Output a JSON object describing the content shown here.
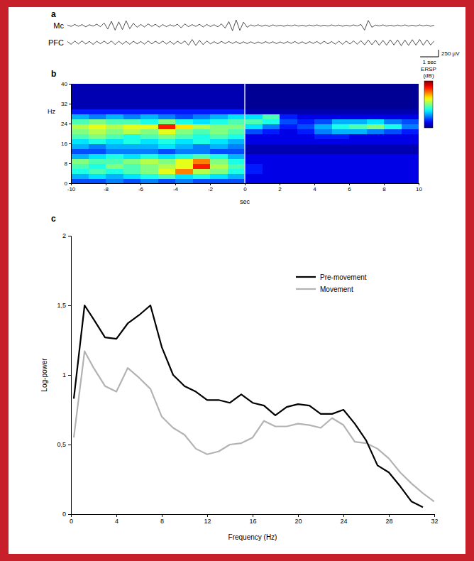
{
  "chart_data": [
    {
      "type": "line",
      "panel_label": "a",
      "xlim": [
        -10,
        10
      ],
      "ylim": [
        -300,
        300
      ],
      "tick_labels": false,
      "x": [
        -10,
        -9.8,
        -9.6,
        -9.4,
        -9.2,
        -9,
        -8.8,
        -8.6,
        -8.4,
        -8.2,
        -8,
        -7.8,
        -7.6,
        -7.4,
        -7.2,
        -7,
        -6.8,
        -6.6,
        -6.4,
        -6.2,
        -6,
        -5.8,
        -5.6,
        -5.4,
        -5.2,
        -5,
        -4.8,
        -4.6,
        -4.4,
        -4.2,
        -4,
        -3.8,
        -3.6,
        -3.4,
        -3.2,
        -3,
        -2.8,
        -2.6,
        -2.4,
        -2.2,
        -2,
        -1.8,
        -1.6,
        -1.4,
        -1.2,
        -1,
        -0.8,
        -0.6,
        -0.4,
        -0.2,
        0,
        0.2,
        0.4,
        0.6,
        0.8,
        1,
        1.2,
        1.4,
        1.6,
        1.8,
        2,
        2.2,
        2.4,
        2.6,
        2.8,
        3,
        3.2,
        3.4,
        3.6,
        3.8,
        4,
        4.2,
        4.4,
        4.6,
        4.8,
        5,
        5.2,
        5.4,
        5.6,
        5.8,
        6,
        6.2,
        6.4,
        6.6,
        6.8,
        7,
        7.2,
        7.4,
        7.6,
        7.8,
        8,
        8.2,
        8.4,
        8.6,
        8.8,
        9,
        9.2,
        9.4,
        9.6,
        9.8,
        10
      ],
      "series": [
        {
          "name": "Mc",
          "color": "#222222",
          "values": [
            20,
            -30,
            40,
            -25,
            35,
            -45,
            30,
            -20,
            50,
            -40,
            90,
            -120,
            150,
            -160,
            130,
            -140,
            170,
            -110,
            80,
            -60,
            40,
            -50,
            60,
            -30,
            45,
            -55,
            35,
            -40,
            30,
            -25,
            50,
            -80,
            60,
            -40,
            35,
            -30,
            45,
            -50,
            40,
            -35,
            30,
            -45,
            60,
            -90,
            140,
            -180,
            200,
            -170,
            120,
            -60,
            25,
            -20,
            30,
            -25,
            20,
            -30,
            25,
            -20,
            15,
            -25,
            20,
            -15,
            25,
            -20,
            15,
            -25,
            20,
            -15,
            25,
            -20,
            15,
            -20,
            25,
            -15,
            20,
            -25,
            15,
            -20,
            25,
            -15,
            40,
            -160,
            180,
            -60,
            20,
            -15,
            25,
            -20,
            15,
            -20,
            20,
            -15,
            25,
            -20,
            15,
            -20,
            25,
            -15,
            20,
            -25,
            15
          ]
        },
        {
          "name": "PFC",
          "color": "#222222",
          "values": [
            40,
            -60,
            55,
            -45,
            60,
            -50,
            45,
            -65,
            50,
            -40,
            55,
            -45,
            60,
            -70,
            50,
            -55,
            45,
            -60,
            50,
            -45,
            40,
            -55,
            60,
            -45,
            50,
            -40,
            55,
            -50,
            45,
            -60,
            50,
            -40,
            60,
            -90,
            110,
            -100,
            80,
            -70,
            60,
            -45,
            35,
            -40,
            45,
            -35,
            40,
            -30,
            35,
            -40,
            30,
            -35,
            30,
            -35,
            25,
            -30,
            35,
            -25,
            30,
            -35,
            25,
            -30,
            35,
            -30,
            40,
            -35,
            30,
            -40,
            35,
            -30,
            40,
            -45,
            50,
            -45,
            40,
            -55,
            50,
            -60,
            55,
            -50,
            60,
            -55,
            70,
            -80,
            90,
            -75,
            85,
            -95,
            80,
            -90,
            100,
            -85,
            95,
            -110,
            90,
            -100,
            105,
            -90,
            110,
            -95,
            100,
            -85,
            60
          ]
        }
      ],
      "scale_bar": {
        "y": 250,
        "y_label": "250 µV",
        "x": 1,
        "x_label": "1 sec"
      }
    },
    {
      "type": "heatmap",
      "panel_label": "b",
      "x_label": "sec",
      "y_label": "Hz",
      "xlim": [
        -10,
        10
      ],
      "ylim": [
        0,
        40
      ],
      "xticks": [
        -10,
        -8,
        -6,
        -4,
        -2,
        0,
        2,
        4,
        6,
        8,
        10
      ],
      "yticks": [
        0,
        8,
        16,
        24,
        32,
        40
      ],
      "x_bins": [
        -10,
        -9,
        -8,
        -7,
        -6,
        -5,
        -4,
        -3,
        -2,
        -1,
        0,
        1,
        2,
        3,
        4,
        5,
        6,
        7,
        8,
        9,
        10
      ],
      "y_bins": [
        0,
        2,
        4,
        6,
        8,
        10,
        12,
        14,
        16,
        18,
        20,
        22,
        24,
        26,
        28,
        30,
        32,
        34,
        36,
        38,
        40
      ],
      "cells": [
        [
          -2,
          -2,
          -1.5,
          -2,
          -1.5,
          -2,
          -1.5,
          -2,
          -2,
          -2,
          -3,
          -3,
          -3,
          -3,
          -3,
          -3,
          -3,
          -3,
          -3,
          -3
        ],
        [
          -1,
          -0.5,
          -1,
          -0.5,
          0,
          0.5,
          -0.5,
          0,
          -0.5,
          -1,
          -3,
          -3,
          -3,
          -3,
          -3,
          -3,
          -3,
          -3,
          -3,
          -3
        ],
        [
          0,
          0.5,
          0,
          0.5,
          1,
          2,
          3.5,
          1.5,
          1,
          0,
          -2.5,
          -3,
          -3,
          -3,
          -3,
          -3,
          -3,
          -3,
          -3,
          -3
        ],
        [
          0.5,
          0,
          1,
          0.5,
          1,
          1.5,
          2,
          4.5,
          1.5,
          0.5,
          -2.5,
          -3,
          -3,
          -3,
          -3,
          -3,
          -3,
          -3,
          -3,
          -3
        ],
        [
          1,
          0.5,
          0.5,
          1,
          1.5,
          1,
          2,
          3.5,
          1,
          0,
          -3,
          -3,
          -3,
          -3,
          -3,
          -3,
          -3,
          -3,
          -3,
          -3
        ],
        [
          -1,
          -0.5,
          0,
          -0.5,
          0,
          -0.5,
          0,
          0.5,
          0,
          -1,
          -3,
          -3,
          -3,
          -3,
          -3,
          -3,
          -3,
          -3,
          -3,
          -3
        ],
        [
          -2,
          -2,
          -1.5,
          -1.5,
          -1.5,
          -2,
          -1.5,
          -1.5,
          -2,
          -2,
          -3.5,
          -3.5,
          -3.5,
          -3.5,
          -3.5,
          -3.5,
          -3.5,
          -3.5,
          -3.5,
          -3.5
        ],
        [
          -1,
          -1.5,
          -1,
          -1,
          -1,
          -0.5,
          -1,
          -1.5,
          -1,
          -1.5,
          -3.5,
          -3.5,
          -3.5,
          -3.5,
          -3.5,
          -3.5,
          -3.5,
          -3.5,
          -3.5,
          -3.5
        ],
        [
          -0.5,
          0,
          -0.5,
          0,
          -0.5,
          0,
          -0.5,
          0,
          -0.5,
          -1,
          -3,
          -3,
          -3,
          -3,
          -3,
          -3,
          -3,
          -3,
          -3,
          -3
        ],
        [
          0.5,
          1,
          0.5,
          0,
          0.5,
          1,
          0.5,
          0,
          0.5,
          0,
          -3,
          -3,
          -3,
          -3,
          -2.5,
          -2.5,
          -3,
          -3,
          -3,
          -3
        ],
        [
          1,
          1.5,
          1,
          1.5,
          1,
          2,
          1,
          0.5,
          1,
          0.5,
          -2,
          -2.5,
          -3,
          -2.5,
          -1.5,
          -1,
          -1,
          -1.5,
          -2,
          -2.5
        ],
        [
          1.5,
          2,
          1.5,
          2,
          2,
          4.5,
          2.5,
          1.5,
          1,
          1,
          -0.5,
          -1.5,
          -2.5,
          -2,
          -1,
          0,
          0.5,
          1,
          0,
          -1.5
        ],
        [
          0.5,
          1,
          0.5,
          0.5,
          0,
          1,
          0,
          -0.5,
          0,
          0.5,
          0.5,
          0,
          -2,
          -2.5,
          -2,
          -1,
          -1,
          -0.5,
          -1.5,
          -2
        ],
        [
          -1,
          -1.5,
          -1,
          -1.5,
          -1,
          -1.5,
          -2,
          -1.5,
          -1,
          -0.5,
          -0.5,
          0.5,
          -2.5,
          -3,
          -3,
          -3,
          -3,
          -3,
          -3,
          -3
        ],
        [
          -2.5,
          -2.5,
          -2.5,
          -2.5,
          -2.5,
          -2.5,
          -2.5,
          -2.5,
          -2.5,
          -2.5,
          -3.5,
          -3.5,
          -3.5,
          -3.5,
          -3.5,
          -3.5,
          -3.5,
          -3.5,
          -3.5,
          -3.5
        ],
        [
          -3.5,
          -3.5,
          -3.5,
          -3.5,
          -3.5,
          -3.5,
          -3.5,
          -3.5,
          -3.5,
          -3.5,
          -3.8,
          -3.8,
          -3.8,
          -3.8,
          -3.8,
          -3.8,
          -3.8,
          -3.8,
          -3.8,
          -3.8
        ],
        [
          -3.5,
          -3.5,
          -3.5,
          -3.5,
          -3.5,
          -3.5,
          -3.5,
          -3.5,
          -3.5,
          -3.5,
          -3.8,
          -3.8,
          -3.8,
          -3.8,
          -3.8,
          -3.8,
          -3.8,
          -3.8,
          -3.8,
          -3.8
        ],
        [
          -3.5,
          -3.5,
          -3.5,
          -3.5,
          -3.5,
          -3.5,
          -3.5,
          -3.5,
          -3.5,
          -3.5,
          -3.8,
          -3.8,
          -3.8,
          -3.8,
          -3.8,
          -3.8,
          -3.8,
          -3.8,
          -3.8,
          -3.8
        ],
        [
          -3.5,
          -3.5,
          -3.5,
          -3.5,
          -3.5,
          -3.5,
          -3.5,
          -3.5,
          -3.5,
          -3.5,
          -3.8,
          -3.8,
          -3.8,
          -3.8,
          -3.8,
          -3.8,
          -3.8,
          -3.8,
          -3.8,
          -3.8
        ],
        [
          -3.5,
          -3.5,
          -3.5,
          -3.5,
          -3.5,
          -3.5,
          -3.5,
          -3.5,
          -3.5,
          -3.5,
          -3.8,
          -3.8,
          -3.8,
          -3.8,
          -3.8,
          -3.8,
          -3.8,
          -3.8,
          -3.8,
          -3.8
        ]
      ],
      "color_range": [
        -4,
        6
      ],
      "colorbar_label": "ERSP (dB)",
      "vlines": [
        0
      ]
    },
    {
      "type": "line",
      "panel_label": "c",
      "x_label": "Frequency (Hz)",
      "y_label": "Log-power",
      "xlim": [
        0,
        32
      ],
      "ylim": [
        0,
        2
      ],
      "xticks": [
        0,
        4,
        8,
        12,
        16,
        20,
        24,
        28,
        32
      ],
      "yticks": [
        0,
        {
          "value": 0.5,
          "label": "0,5"
        },
        1,
        {
          "value": 1.5,
          "label": "1,5"
        },
        2
      ],
      "legend": "top-right",
      "x": [
        0.25,
        1.2,
        2,
        3,
        4,
        5,
        6,
        7,
        8,
        9,
        10,
        11,
        12,
        13,
        14,
        15,
        16,
        17,
        18,
        19,
        20,
        21,
        22,
        23,
        24,
        25,
        26,
        27,
        28,
        29,
        30,
        31,
        32
      ],
      "series": [
        {
          "name": "Pre-movement",
          "color": "#000000",
          "values": [
            0.83,
            1.5,
            1.4,
            1.27,
            1.26,
            1.37,
            1.43,
            1.5,
            1.2,
            1.0,
            0.92,
            0.88,
            0.82,
            0.82,
            0.8,
            0.86,
            0.8,
            0.78,
            0.71,
            0.77,
            0.79,
            0.78,
            0.72,
            0.72,
            0.75,
            0.65,
            0.53,
            0.35,
            0.3,
            0.2,
            0.09,
            0.05,
            null
          ]
        },
        {
          "name": "Movement",
          "color": "#b3b3b3",
          "values": [
            0.55,
            1.17,
            1.05,
            0.92,
            0.88,
            1.05,
            0.98,
            0.9,
            0.7,
            0.62,
            0.57,
            0.47,
            0.43,
            0.45,
            0.5,
            0.51,
            0.55,
            0.67,
            0.63,
            0.63,
            0.65,
            0.64,
            0.62,
            0.69,
            0.64,
            0.52,
            0.51,
            0.47,
            0.4,
            0.3,
            0.22,
            0.15,
            0.09
          ]
        }
      ]
    }
  ]
}
